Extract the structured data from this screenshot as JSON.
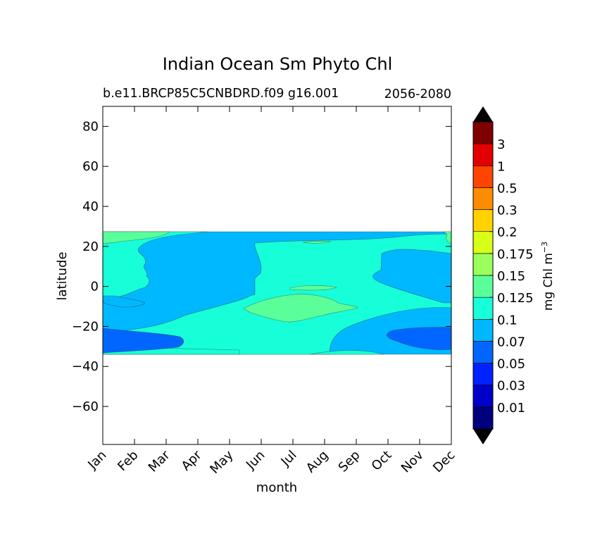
{
  "chart_data": {
    "type": "heatmap",
    "title": "Indian Ocean Sm Phyto Chl",
    "subtitle_left": "b.e11.BRCP85C5CNBDRD.f09 g16.001",
    "subtitle_right": "2056-2080",
    "xlabel": "month",
    "ylabel": "latitude",
    "x_ticks": [
      "Jan",
      "Feb",
      "Mar",
      "Apr",
      "May",
      "Jun",
      "Jul",
      "Aug",
      "Sep",
      "Oct",
      "Nov",
      "Dec"
    ],
    "y_ticks": [
      "80",
      "60",
      "40",
      "20",
      "0",
      "−20",
      "−40",
      "−60"
    ],
    "y_tick_values": [
      80,
      60,
      40,
      20,
      0,
      -20,
      -40,
      -60
    ],
    "ylim": [
      -79,
      90
    ],
    "data_lat_range": [
      -34,
      27
    ],
    "colorbar": {
      "label_text": "mg Chl m",
      "label_exponent": "−3",
      "levels": [
        "0.01",
        "0.03",
        "0.05",
        "0.07",
        "0.1",
        "0.125",
        "0.15",
        "0.175",
        "0.2",
        "0.3",
        "0.5",
        "1",
        "3"
      ],
      "colors": [
        "#00007f",
        "#0000c8",
        "#0022ff",
        "#0066ff",
        "#00b8ff",
        "#17ffd8",
        "#5aff9a",
        "#9aff5a",
        "#d8ff17",
        "#ffd200",
        "#ff8c00",
        "#ff4400",
        "#e40000",
        "#7f0000"
      ],
      "extend": "both"
    },
    "regions": [
      {
        "name": "base",
        "level": "0.07–0.1",
        "color": "#00b8ff"
      },
      {
        "name": "mid-band",
        "level": "0.1–0.125",
        "color": "#17ffd8"
      },
      {
        "name": "south-band",
        "level": "0.1–0.125",
        "color": "#17ffd8"
      },
      {
        "name": "west-south-band",
        "level": "0.1–0.125",
        "color": "#17ffd8"
      },
      {
        "name": "north-west",
        "level": "0.1–0.125",
        "color": "#17ffd8"
      },
      {
        "name": "central-patch",
        "level": "0.125–0.15",
        "color": "#5aff9a"
      },
      {
        "name": "north-west-patch",
        "level": "0.125–0.15",
        "color": "#5aff9a"
      },
      {
        "name": "southwest-low",
        "level": "0.05–0.07",
        "color": "#0066ff"
      },
      {
        "name": "southeast-low",
        "level": "0.05–0.07",
        "color": "#0066ff"
      }
    ]
  }
}
